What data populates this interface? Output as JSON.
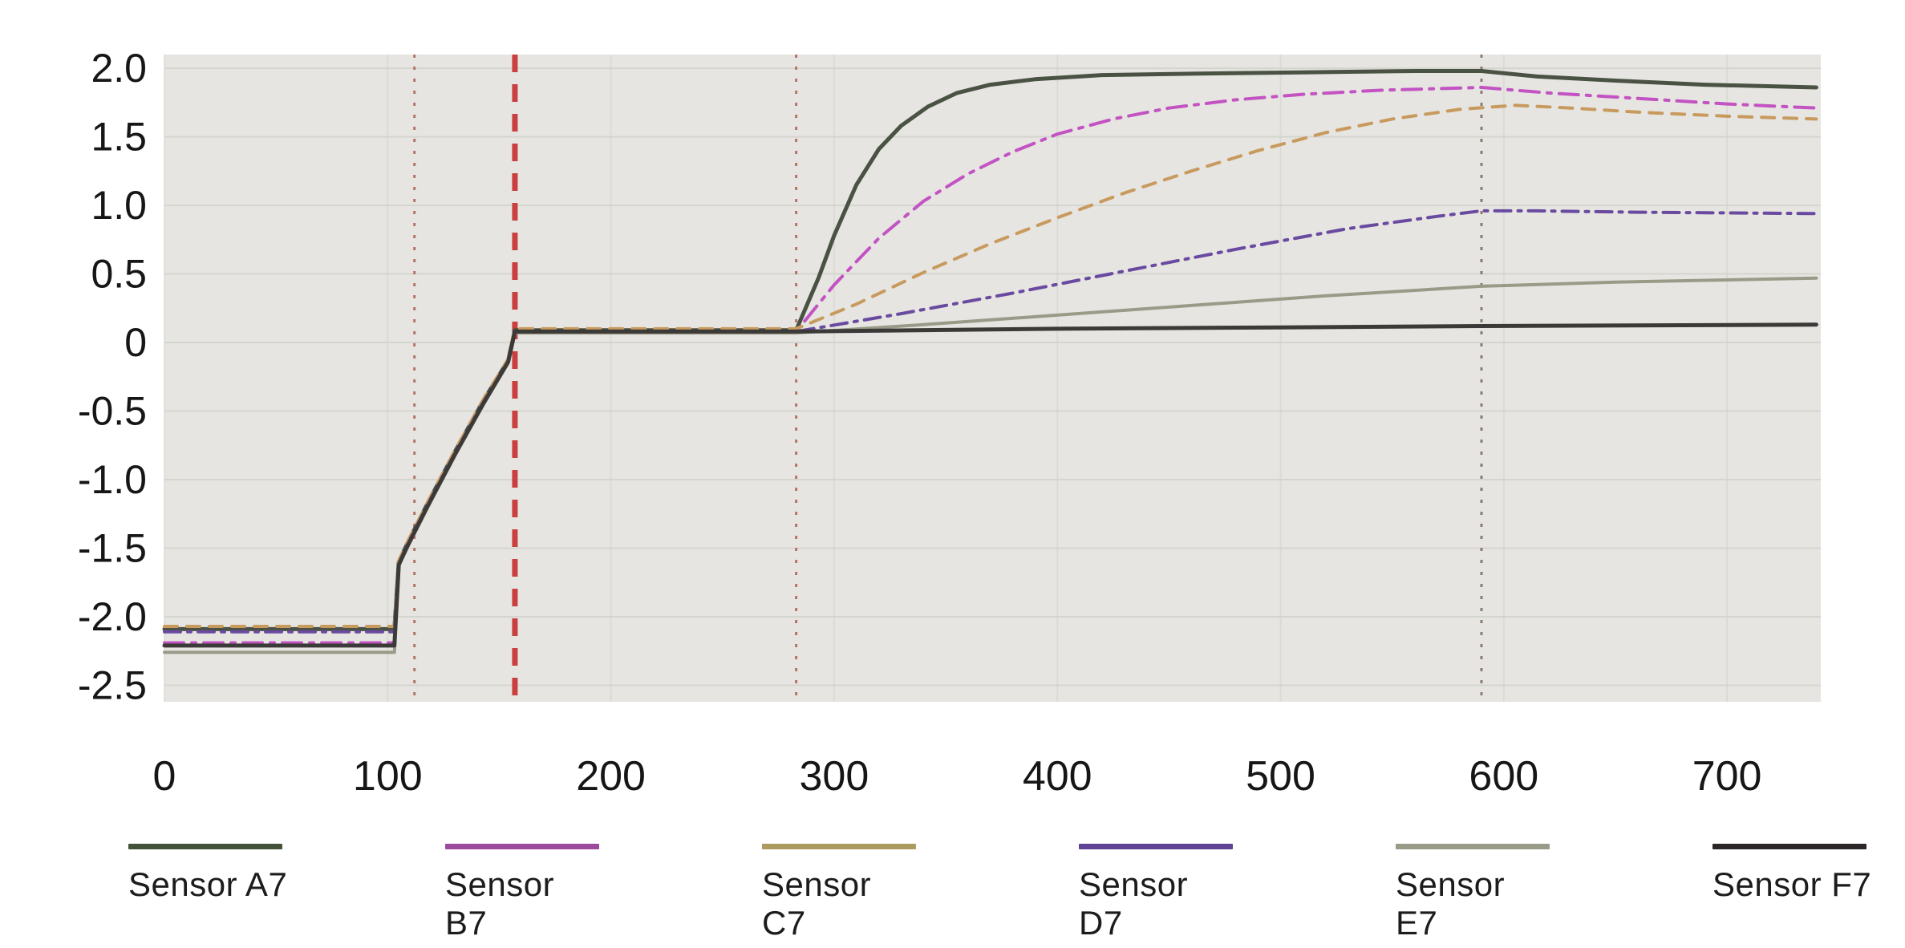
{
  "chart_data": {
    "type": "line",
    "title": "",
    "xlabel": "",
    "ylabel": "",
    "xlim": [
      0,
      742
    ],
    "ylim": [
      -2.62,
      2.1
    ],
    "grid": true,
    "plot_bg": "#e6e5e1",
    "grid_color": "#d3d3cd",
    "x_ticks": [
      0,
      100,
      200,
      300,
      400,
      500,
      600,
      700
    ],
    "y_ticks": [
      "2.0",
      "1.5",
      "1.0",
      "0.5",
      "0",
      "-0.5",
      "-1.0",
      "-1.5",
      "-2.0",
      "-2.5"
    ],
    "y_tick_values": [
      2.0,
      1.5,
      1.0,
      0.5,
      0,
      -0.5,
      -1.0,
      -1.5,
      -2.0,
      -2.5
    ],
    "legend_position": "bottom",
    "event_lines": [
      {
        "x": 112,
        "style": "dotted",
        "color": "#b5736a",
        "width": 3
      },
      {
        "x": 157,
        "style": "dashed",
        "color": "#c84040",
        "width": 7
      },
      {
        "x": 283,
        "style": "dotted",
        "color": "#b5736a",
        "width": 3
      },
      {
        "x": 590,
        "style": "dotted",
        "color": "#8d7a74",
        "width": 3
      }
    ],
    "series": [
      {
        "name": "Sensor A7",
        "legend_color": "#44523a",
        "line_color": "#4a5244",
        "dash": "",
        "width": 5,
        "points": [
          [
            0,
            -2.09
          ],
          [
            103,
            -2.09
          ],
          [
            105,
            -1.6
          ],
          [
            109,
            -1.46
          ],
          [
            118,
            -1.17
          ],
          [
            130,
            -0.8
          ],
          [
            143,
            -0.42
          ],
          [
            154,
            -0.13
          ],
          [
            157,
            0.09
          ],
          [
            283,
            0.09
          ],
          [
            293,
            0.47
          ],
          [
            300,
            0.78
          ],
          [
            310,
            1.15
          ],
          [
            320,
            1.41
          ],
          [
            330,
            1.58
          ],
          [
            342,
            1.72
          ],
          [
            355,
            1.82
          ],
          [
            370,
            1.88
          ],
          [
            390,
            1.92
          ],
          [
            420,
            1.95
          ],
          [
            460,
            1.96
          ],
          [
            510,
            1.97
          ],
          [
            560,
            1.98
          ],
          [
            590,
            1.98
          ],
          [
            615,
            1.94
          ],
          [
            650,
            1.91
          ],
          [
            690,
            1.88
          ],
          [
            740,
            1.86
          ]
        ]
      },
      {
        "name": "Sensor B7",
        "legend_color": "#9c4a9c",
        "line_color": "#c353c3",
        "dash": "24 10 5 10",
        "width": 4,
        "points": [
          [
            0,
            -2.19
          ],
          [
            103,
            -2.19
          ],
          [
            105,
            -1.62
          ],
          [
            109,
            -1.48
          ],
          [
            118,
            -1.19
          ],
          [
            130,
            -0.82
          ],
          [
            143,
            -0.44
          ],
          [
            154,
            -0.14
          ],
          [
            157,
            0.08
          ],
          [
            283,
            0.08
          ],
          [
            300,
            0.42
          ],
          [
            320,
            0.76
          ],
          [
            340,
            1.03
          ],
          [
            360,
            1.23
          ],
          [
            380,
            1.39
          ],
          [
            400,
            1.52
          ],
          [
            425,
            1.63
          ],
          [
            450,
            1.71
          ],
          [
            480,
            1.77
          ],
          [
            510,
            1.81
          ],
          [
            545,
            1.84
          ],
          [
            590,
            1.86
          ],
          [
            620,
            1.82
          ],
          [
            660,
            1.78
          ],
          [
            700,
            1.74
          ],
          [
            740,
            1.71
          ]
        ]
      },
      {
        "name": "Sensor C7",
        "legend_color": "#ac9b60",
        "line_color": "#c89a5e",
        "dash": "16 12",
        "width": 4,
        "points": [
          [
            0,
            -2.07
          ],
          [
            103,
            -2.07
          ],
          [
            105,
            -1.59
          ],
          [
            109,
            -1.45
          ],
          [
            118,
            -1.16
          ],
          [
            130,
            -0.79
          ],
          [
            143,
            -0.41
          ],
          [
            154,
            -0.12
          ],
          [
            157,
            0.1
          ],
          [
            283,
            0.1
          ],
          [
            310,
            0.28
          ],
          [
            340,
            0.51
          ],
          [
            370,
            0.72
          ],
          [
            400,
            0.91
          ],
          [
            430,
            1.09
          ],
          [
            460,
            1.25
          ],
          [
            490,
            1.4
          ],
          [
            520,
            1.53
          ],
          [
            550,
            1.63
          ],
          [
            580,
            1.7
          ],
          [
            605,
            1.73
          ],
          [
            630,
            1.71
          ],
          [
            660,
            1.68
          ],
          [
            700,
            1.65
          ],
          [
            740,
            1.63
          ]
        ]
      },
      {
        "name": "Sensor D7",
        "legend_color": "#5f4496",
        "line_color": "#6a4aa0",
        "dash": "20 9 4 9",
        "width": 4,
        "points": [
          [
            0,
            -2.11
          ],
          [
            103,
            -2.11
          ],
          [
            105,
            -1.61
          ],
          [
            109,
            -1.47
          ],
          [
            118,
            -1.18
          ],
          [
            130,
            -0.81
          ],
          [
            143,
            -0.43
          ],
          [
            154,
            -0.14
          ],
          [
            157,
            0.08
          ],
          [
            283,
            0.08
          ],
          [
            330,
            0.21
          ],
          [
            380,
            0.36
          ],
          [
            430,
            0.52
          ],
          [
            480,
            0.68
          ],
          [
            530,
            0.83
          ],
          [
            570,
            0.92
          ],
          [
            590,
            0.96
          ],
          [
            615,
            0.96
          ],
          [
            660,
            0.95
          ],
          [
            740,
            0.94
          ]
        ]
      },
      {
        "name": "Sensor E7",
        "legend_color": "#9a9a88",
        "line_color": "#9a9a88",
        "dash": "",
        "width": 4,
        "points": [
          [
            0,
            -2.26
          ],
          [
            103,
            -2.26
          ],
          [
            105,
            -1.63
          ],
          [
            109,
            -1.49
          ],
          [
            118,
            -1.2
          ],
          [
            130,
            -0.83
          ],
          [
            143,
            -0.45
          ],
          [
            154,
            -0.15
          ],
          [
            157,
            0.07
          ],
          [
            283,
            0.07
          ],
          [
            340,
            0.13
          ],
          [
            400,
            0.2
          ],
          [
            460,
            0.27
          ],
          [
            520,
            0.34
          ],
          [
            590,
            0.41
          ],
          [
            650,
            0.44
          ],
          [
            740,
            0.47
          ]
        ]
      },
      {
        "name": "Sensor F7",
        "legend_color": "#2b2726",
        "line_color": "#3c3a38",
        "dash": "",
        "width": 5,
        "points": [
          [
            0,
            -2.21
          ],
          [
            103,
            -2.21
          ],
          [
            105,
            -1.62
          ],
          [
            109,
            -1.48
          ],
          [
            118,
            -1.19
          ],
          [
            130,
            -0.82
          ],
          [
            143,
            -0.44
          ],
          [
            154,
            -0.14
          ],
          [
            157,
            0.08
          ],
          [
            283,
            0.08
          ],
          [
            400,
            0.1
          ],
          [
            500,
            0.11
          ],
          [
            590,
            0.12
          ],
          [
            740,
            0.13
          ]
        ]
      }
    ]
  },
  "legend": {
    "items": [
      {
        "label": "Sensor A7",
        "color": "#44523a"
      },
      {
        "label": "Sensor B7",
        "color": "#9c4a9c"
      },
      {
        "label": "Sensor C7",
        "color": "#ac9b60"
      },
      {
        "label": "Sensor D7",
        "color": "#5f4496"
      },
      {
        "label": "Sensor E7",
        "color": "#9a9a88"
      },
      {
        "label": "Sensor F7",
        "color": "#2b2726"
      }
    ]
  }
}
